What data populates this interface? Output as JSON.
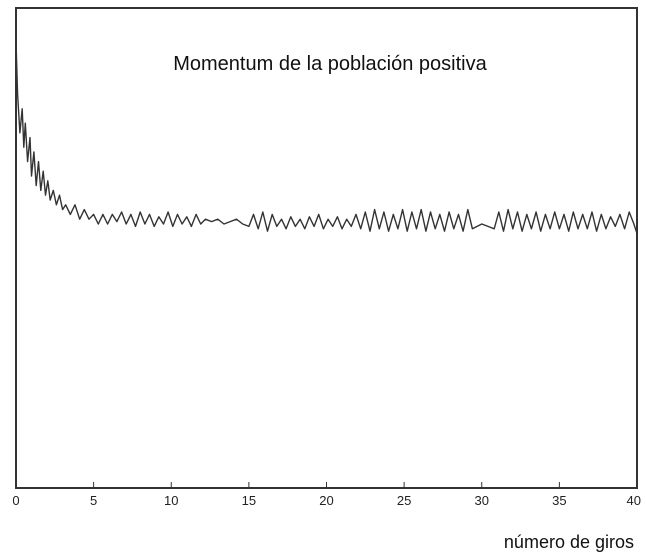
{
  "chart_data": {
    "type": "line",
    "title": "Momentum de la población positiva",
    "xlabel": "número de giros",
    "ylabel": "",
    "xlim": [
      0,
      40
    ],
    "ylim": [
      0,
      1
    ],
    "x_ticks": [
      0,
      5,
      10,
      15,
      20,
      25,
      30,
      35,
      40
    ],
    "y_ticks": [],
    "grid": false,
    "legend": "none",
    "colors": {
      "line": "#333333",
      "frame": "#333333"
    },
    "series": [
      {
        "x": [
          0,
          0.1,
          0.25,
          0.4,
          0.5,
          0.6,
          0.75,
          0.9,
          1.0,
          1.15,
          1.3,
          1.45,
          1.6,
          1.75,
          1.9,
          2.05,
          2.2,
          2.4,
          2.6,
          2.8,
          3.0,
          3.2,
          3.5,
          3.8,
          4.1,
          4.4,
          4.7,
          5.0,
          5.3,
          5.6,
          5.9,
          6.2,
          6.5,
          6.8,
          7.1,
          7.4,
          7.7,
          8.0,
          8.3,
          8.6,
          8.9,
          9.2,
          9.5,
          9.8,
          10.1,
          10.4,
          10.7,
          11.0,
          11.3,
          11.6,
          11.9,
          12.2,
          12.6,
          13.0,
          13.4,
          13.8,
          14.2,
          14.6,
          15.0,
          15.3,
          15.6,
          15.9,
          16.2,
          16.5,
          16.8,
          17.1,
          17.4,
          17.7,
          18.0,
          18.3,
          18.6,
          18.9,
          19.2,
          19.5,
          19.8,
          20.1,
          20.4,
          20.7,
          21.0,
          21.3,
          21.6,
          21.9,
          22.2,
          22.5,
          22.8,
          23.1,
          23.4,
          23.7,
          24.0,
          24.3,
          24.6,
          24.9,
          25.2,
          25.5,
          25.8,
          26.1,
          26.4,
          26.7,
          27.0,
          27.3,
          27.6,
          27.9,
          28.2,
          28.5,
          28.8,
          29.1,
          29.4,
          29.7,
          30.0,
          30.4,
          30.8,
          31.1,
          31.4,
          31.7,
          32.0,
          32.3,
          32.6,
          32.9,
          33.2,
          33.5,
          33.8,
          34.1,
          34.4,
          34.7,
          35.0,
          35.3,
          35.6,
          35.9,
          36.2,
          36.5,
          36.8,
          37.1,
          37.4,
          37.7,
          38.0,
          38.3,
          38.6,
          38.9,
          39.2,
          39.5,
          39.8,
          40.0
        ],
        "values": [
          0.93,
          0.82,
          0.74,
          0.79,
          0.71,
          0.76,
          0.68,
          0.73,
          0.65,
          0.7,
          0.63,
          0.68,
          0.62,
          0.66,
          0.61,
          0.64,
          0.6,
          0.62,
          0.59,
          0.61,
          0.58,
          0.59,
          0.57,
          0.59,
          0.56,
          0.58,
          0.56,
          0.57,
          0.55,
          0.57,
          0.55,
          0.57,
          0.555,
          0.575,
          0.55,
          0.57,
          0.545,
          0.575,
          0.55,
          0.57,
          0.545,
          0.565,
          0.55,
          0.575,
          0.545,
          0.57,
          0.55,
          0.565,
          0.545,
          0.57,
          0.55,
          0.56,
          0.555,
          0.56,
          0.55,
          0.555,
          0.56,
          0.55,
          0.545,
          0.57,
          0.54,
          0.575,
          0.535,
          0.57,
          0.545,
          0.56,
          0.54,
          0.565,
          0.545,
          0.56,
          0.54,
          0.565,
          0.545,
          0.57,
          0.54,
          0.56,
          0.545,
          0.565,
          0.54,
          0.56,
          0.545,
          0.57,
          0.54,
          0.575,
          0.535,
          0.58,
          0.54,
          0.575,
          0.535,
          0.57,
          0.54,
          0.58,
          0.535,
          0.575,
          0.54,
          0.58,
          0.535,
          0.575,
          0.54,
          0.57,
          0.535,
          0.575,
          0.54,
          0.57,
          0.535,
          0.58,
          0.54,
          0.545,
          0.55,
          0.545,
          0.54,
          0.575,
          0.535,
          0.58,
          0.54,
          0.575,
          0.535,
          0.57,
          0.54,
          0.575,
          0.535,
          0.57,
          0.54,
          0.575,
          0.54,
          0.57,
          0.535,
          0.575,
          0.54,
          0.57,
          0.54,
          0.575,
          0.535,
          0.57,
          0.54,
          0.565,
          0.545,
          0.57,
          0.54,
          0.575,
          0.55,
          0.53
        ]
      }
    ]
  }
}
